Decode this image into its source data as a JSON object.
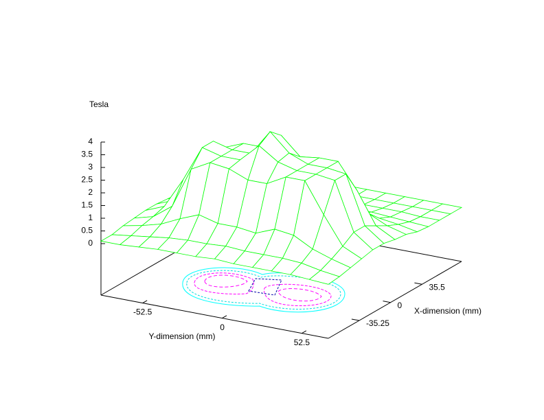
{
  "chart_data": {
    "type": "surface",
    "zlabel": "Tesla",
    "xlabel": "X-dimension (mm)",
    "ylabel": "Y-dimension (mm)",
    "color": "#00ff00",
    "xlim": [
      -70,
      80
    ],
    "ylim": [
      -80,
      70
    ],
    "zlim": [
      0,
      4
    ],
    "xticks": [
      -35.25,
      0,
      35.5
    ],
    "yticks": [
      -52.5,
      0,
      52.5
    ],
    "zticks": [
      0,
      0.5,
      1,
      1.5,
      2,
      2.5,
      3,
      3.5,
      4
    ],
    "x": [
      -70,
      -57.5,
      -45,
      -32.5,
      -20,
      -7.5,
      5,
      17.5,
      30,
      42.5,
      55,
      67.5,
      80
    ],
    "y": [
      -80,
      -67.5,
      -55,
      -42.5,
      -30,
      -17.5,
      -5,
      7.5,
      20,
      32.5,
      45,
      57.5,
      70
    ],
    "z": [
      [
        0.1,
        0.1,
        0.15,
        0.2,
        0.2,
        0.2,
        0.25,
        0.2,
        0.2,
        0.2,
        0.2,
        0.15,
        0.1
      ],
      [
        0.1,
        0.2,
        0.3,
        0.4,
        0.45,
        0.45,
        0.5,
        0.45,
        0.45,
        0.45,
        0.4,
        0.25,
        0.15
      ],
      [
        0.2,
        0.35,
        0.55,
        0.9,
        1.2,
        1.0,
        1.0,
        0.9,
        1.2,
        1.1,
        0.7,
        0.45,
        0.25
      ],
      [
        0.25,
        0.45,
        1.0,
        2.6,
        3.0,
        2.9,
        2.6,
        2.6,
        3.0,
        3.0,
        1.8,
        0.7,
        0.35
      ],
      [
        0.3,
        0.6,
        1.8,
        3.2,
        3.0,
        3.0,
        3.7,
        3.2,
        3.0,
        3.0,
        2.9,
        1.0,
        0.45
      ],
      [
        0.3,
        0.6,
        1.9,
        3.2,
        3.0,
        3.0,
        4.0,
        3.3,
        3.0,
        3.0,
        2.9,
        1.0,
        0.45
      ],
      [
        0.25,
        0.5,
        1.1,
        2.7,
        3.0,
        3.0,
        3.6,
        2.9,
        3.0,
        3.0,
        2.0,
        0.75,
        0.35
      ],
      [
        0.2,
        0.35,
        0.6,
        1.0,
        1.3,
        1.2,
        1.6,
        1.1,
        1.3,
        1.2,
        0.85,
        0.5,
        0.3
      ],
      [
        0.1,
        0.2,
        0.35,
        0.45,
        0.5,
        0.45,
        0.6,
        0.45,
        0.45,
        0.45,
        0.4,
        0.3,
        0.15
      ],
      [
        0.1,
        0.1,
        0.2,
        0.25,
        0.25,
        0.25,
        0.3,
        0.25,
        0.25,
        0.25,
        0.2,
        0.15,
        0.1
      ],
      [
        0.1,
        0.1,
        0.1,
        0.15,
        0.15,
        0.15,
        0.2,
        0.15,
        0.15,
        0.15,
        0.15,
        0.1,
        0.1
      ],
      [
        0.1,
        0.1,
        0.1,
        0.1,
        0.1,
        0.1,
        0.1,
        0.1,
        0.1,
        0.1,
        0.1,
        0.1,
        0.1
      ],
      [
        0.1,
        0.1,
        0.1,
        0.1,
        0.1,
        0.1,
        0.1,
        0.1,
        0.1,
        0.1,
        0.1,
        0.1,
        0.1
      ]
    ]
  }
}
